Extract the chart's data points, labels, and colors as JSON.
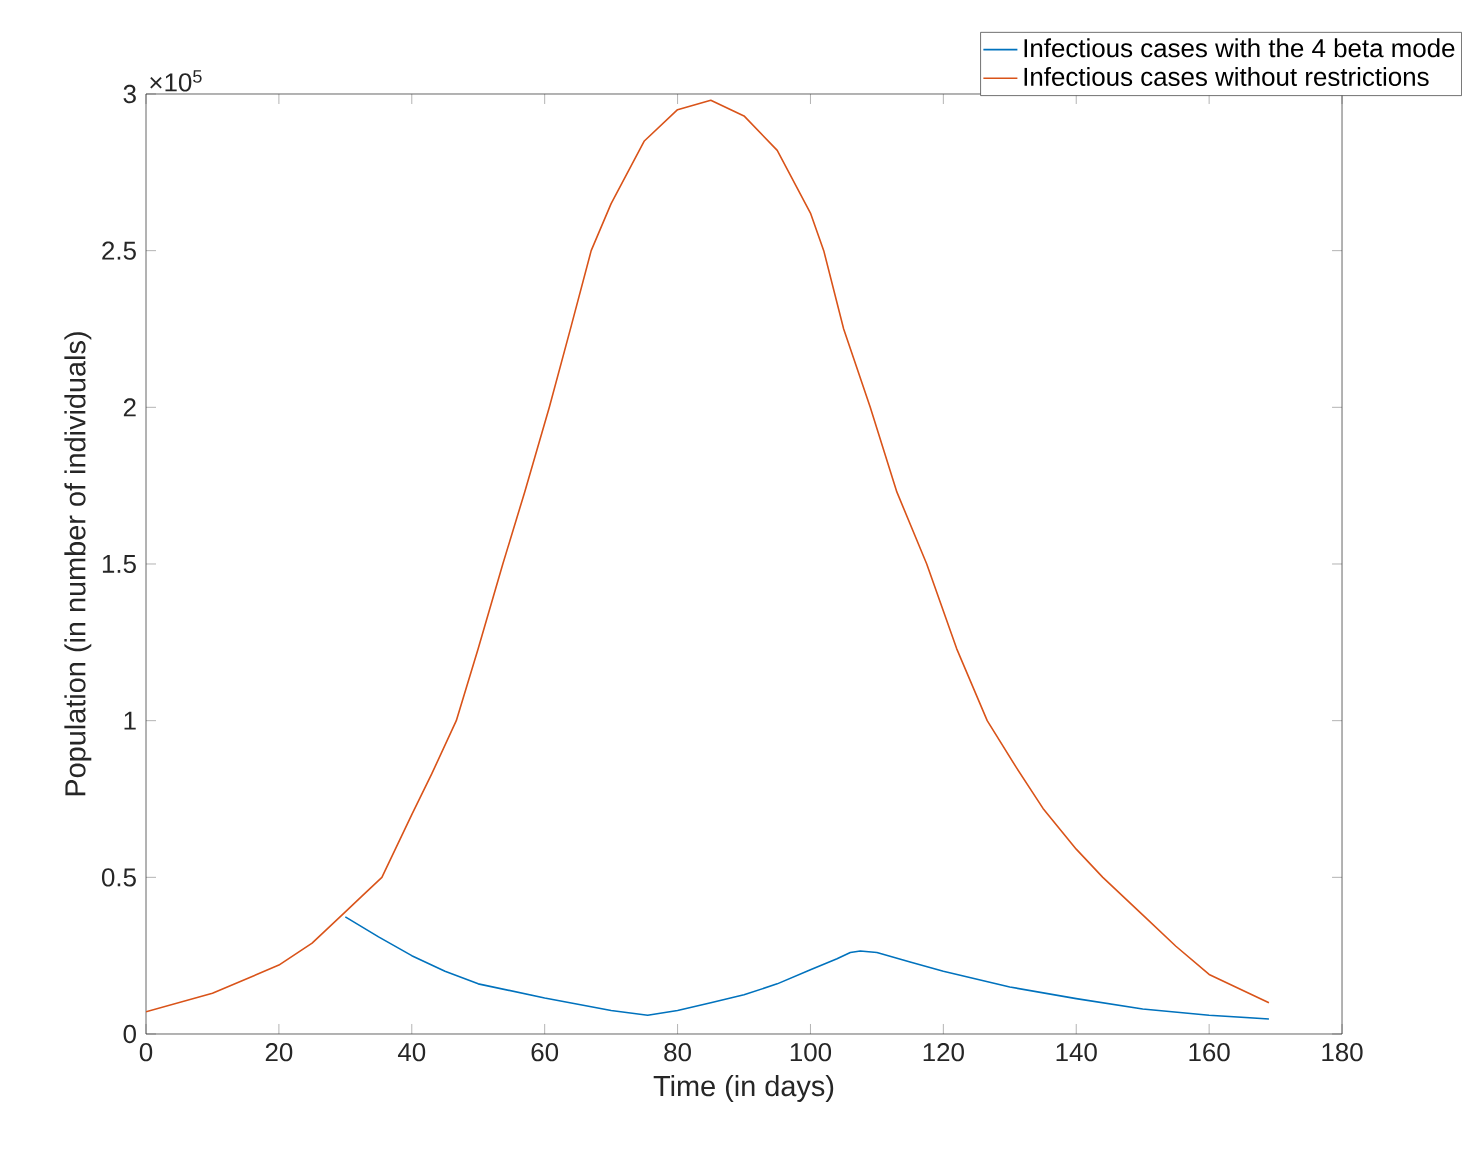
{
  "chart_data": {
    "type": "line",
    "xlabel": "Time (in days)",
    "ylabel": "Population (in number of individuals)",
    "annotations": [
      "×10$^{5}$"
    ],
    "xlim": [
      0,
      180
    ],
    "xticks": [
      0,
      20,
      40,
      60,
      80,
      100,
      120,
      140,
      160,
      180
    ],
    "ylim": [
      0,
      3
    ],
    "yticks": [
      0,
      0.5,
      1,
      1.5,
      2,
      2.5,
      3
    ],
    "legend": "top right",
    "line_style": "solid",
    "marker": "none",
    "series": [
      {
        "name": "Infectious cases with the 4 beta mode",
        "color": "#0072bd",
        "x": [
          30,
          35,
          40,
          45,
          50,
          60,
          70,
          75.5,
          80,
          85,
          90,
          95,
          100,
          104,
          106,
          107.5,
          110,
          115,
          120,
          130,
          140,
          150,
          160,
          169
        ],
        "values": [
          0.374,
          0.31,
          0.25,
          0.2,
          0.16,
          0.115,
          0.075,
          0.06,
          0.075,
          0.1,
          0.125,
          0.16,
          0.205,
          0.24,
          0.26,
          0.265,
          0.26,
          0.23,
          0.2,
          0.15,
          0.113,
          0.08,
          0.06,
          0.048
        ]
      },
      {
        "name": "Infectious cases without restrictions",
        "color": "#d95319",
        "x": [
          0,
          10,
          20,
          25,
          30,
          32.5,
          35.5,
          40,
          43,
          46.7,
          50,
          53.7,
          57,
          60.7,
          64,
          67,
          70,
          75,
          80,
          85,
          90,
          95,
          100,
          102,
          105,
          109,
          113,
          117.5,
          122,
          126.6,
          131,
          135,
          140,
          144,
          150,
          155,
          160,
          169
        ],
        "values": [
          0.071,
          0.13,
          0.22,
          0.29,
          0.39,
          0.44,
          0.5,
          0.7,
          0.83,
          1.0,
          1.23,
          1.5,
          1.73,
          2.0,
          2.26,
          2.5,
          2.65,
          2.85,
          2.95,
          2.98,
          2.93,
          2.82,
          2.62,
          2.5,
          2.25,
          2.0,
          1.73,
          1.5,
          1.23,
          1.0,
          0.85,
          0.72,
          0.59,
          0.5,
          0.38,
          0.28,
          0.19,
          0.1
        ]
      }
    ]
  }
}
